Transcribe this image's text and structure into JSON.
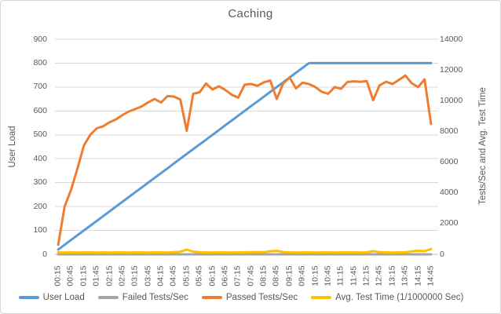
{
  "window": {
    "background_color": "#FFFFFF",
    "border_color": "#D7D7D7",
    "gridline_color": "#D9D9D9",
    "axis_line_color": "#BFBFBF",
    "text_color": "#595959"
  },
  "chart_data": {
    "type": "line",
    "title": "Caching",
    "grid": true,
    "legend_position": "bottom",
    "x_label_interval": 2,
    "x": [
      "00:15",
      "00:30",
      "00:45",
      "01:00",
      "01:15",
      "01:30",
      "01:45",
      "02:00",
      "02:15",
      "02:30",
      "02:45",
      "03:00",
      "03:15",
      "03:30",
      "03:45",
      "04:00",
      "04:15",
      "04:30",
      "04:45",
      "05:00",
      "05:15",
      "05:30",
      "05:45",
      "06:00",
      "06:15",
      "06:30",
      "06:45",
      "07:00",
      "07:15",
      "07:30",
      "07:45",
      "08:00",
      "08:15",
      "08:30",
      "08:45",
      "09:00",
      "09:15",
      "09:30",
      "09:45",
      "10:00",
      "10:15",
      "10:30",
      "10:45",
      "11:00",
      "11:15",
      "11:30",
      "11:45",
      "12:00",
      "12:15",
      "12:30",
      "12:45",
      "13:00",
      "13:15",
      "13:30",
      "13:45",
      "14:00",
      "14:15",
      "14:30",
      "14:45"
    ],
    "x_tick_labels": [
      "00:15",
      "00:45",
      "01:15",
      "01:45",
      "02:15",
      "02:45",
      "03:15",
      "03:45",
      "04:15",
      "04:45",
      "05:15",
      "05:45",
      "06:15",
      "06:45",
      "07:15",
      "07:45",
      "08:15",
      "08:45",
      "09:15",
      "09:45",
      "10:15",
      "10:45",
      "11:15",
      "11:45",
      "12:15",
      "12:45",
      "13:15",
      "13:45",
      "14:15",
      "14:45"
    ],
    "left_axis": {
      "title": "User Load",
      "min": 0,
      "max": 900,
      "tick_step": 100,
      "ticks": [
        "0",
        "100",
        "200",
        "300",
        "400",
        "500",
        "600",
        "700",
        "800",
        "900"
      ]
    },
    "right_axis": {
      "title": "Tests/Sec and Avg. Test Time",
      "min": 0,
      "max": 14000,
      "tick_step": 2000,
      "ticks": [
        "0",
        "2000",
        "4000",
        "6000",
        "8000",
        "10000",
        "12000",
        "14000"
      ]
    },
    "series": [
      {
        "name": "User Load",
        "color": "#5B9BD5",
        "axis": "left",
        "values": [
          20,
          40,
          60,
          80,
          100,
          120,
          140,
          160,
          180,
          200,
          220,
          240,
          260,
          280,
          300,
          320,
          340,
          360,
          380,
          400,
          420,
          440,
          460,
          480,
          500,
          520,
          540,
          560,
          580,
          600,
          620,
          640,
          660,
          680,
          700,
          720,
          740,
          760,
          780,
          800,
          800,
          800,
          800,
          800,
          800,
          800,
          800,
          800,
          800,
          800,
          800,
          800,
          800,
          800,
          800,
          800,
          800,
          800,
          800
        ]
      },
      {
        "name": "Failed Tests/Sec",
        "color": "#A5A5A5",
        "axis": "right",
        "values": [
          0,
          0,
          0,
          0,
          0,
          0,
          0,
          0,
          0,
          0,
          0,
          0,
          0,
          0,
          0,
          0,
          0,
          0,
          0,
          0,
          0,
          0,
          0,
          0,
          0,
          0,
          0,
          0,
          0,
          0,
          0,
          0,
          0,
          0,
          0,
          0,
          0,
          0,
          0,
          0,
          0,
          0,
          0,
          0,
          0,
          0,
          0,
          0,
          0,
          0,
          0,
          0,
          0,
          0,
          0,
          0,
          0,
          0,
          0
        ]
      },
      {
        "name": "Passed Tests/Sec",
        "color": "#ED7D31",
        "axis": "right",
        "values": [
          620,
          3110,
          4200,
          5600,
          7080,
          7780,
          8200,
          8340,
          8600,
          8790,
          9070,
          9300,
          9460,
          9630,
          9890,
          10110,
          9880,
          10300,
          10270,
          10080,
          8040,
          10450,
          10550,
          11120,
          10730,
          10940,
          10700,
          10390,
          10200,
          11040,
          11090,
          10970,
          11200,
          11310,
          10110,
          11120,
          11510,
          10800,
          11180,
          11080,
          10890,
          10580,
          10450,
          10890,
          10780,
          11220,
          11260,
          11230,
          11280,
          10030,
          11000,
          11230,
          11080,
          11360,
          11640,
          11140,
          10890,
          11390,
          8480
        ]
      },
      {
        "name": "Avg. Test Time (1/1000000 Sec)",
        "color": "#FFC000",
        "axis": "right",
        "values": [
          130,
          120,
          130,
          120,
          130,
          130,
          120,
          130,
          120,
          130,
          130,
          120,
          130,
          130,
          120,
          130,
          130,
          120,
          140,
          170,
          310,
          180,
          140,
          130,
          120,
          130,
          130,
          120,
          130,
          130,
          140,
          150,
          140,
          200,
          230,
          150,
          130,
          120,
          130,
          130,
          120,
          130,
          130,
          120,
          130,
          130,
          130,
          120,
          130,
          210,
          140,
          130,
          120,
          130,
          130,
          200,
          230,
          210,
          340
        ]
      }
    ]
  }
}
